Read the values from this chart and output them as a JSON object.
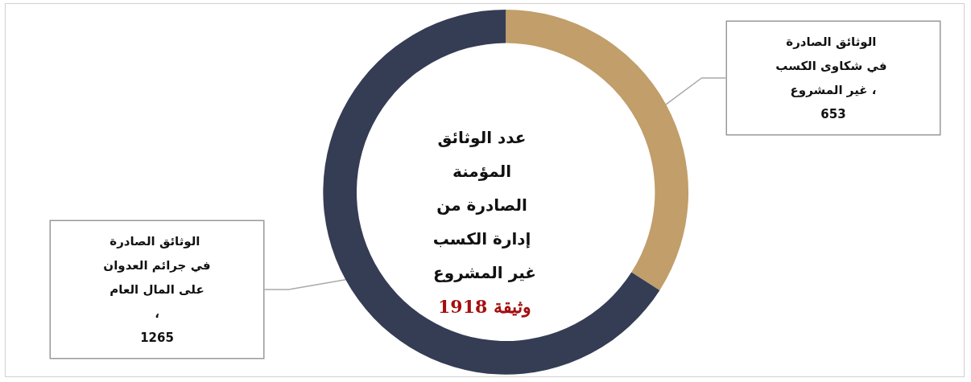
{
  "chart_data": {
    "type": "donut",
    "title": "عدد الوثائق المؤمنة الصادرة من إدارة الكسب غير المشروع",
    "subtitle": "1918 وثيقة",
    "categories": [
      "الوثائق الصادرة في شكاوى الكسب غير المشروع ،",
      "الوثائق الصادرة في جرائم العدوان على المال العام ،"
    ],
    "values": [
      653,
      1265
    ],
    "colors": [
      "#c19e6a",
      "#353d55"
    ],
    "data_labels": true,
    "legend": false
  }
}
